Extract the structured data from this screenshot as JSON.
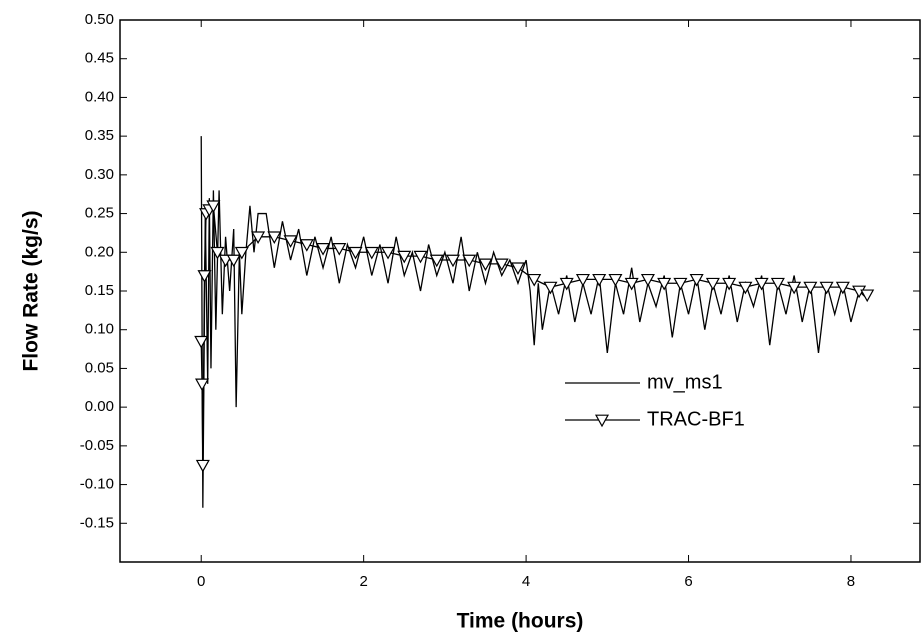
{
  "chart_data": {
    "type": "line",
    "x_label": "Time (hours)",
    "y_label": "Flow Rate (kg/s)",
    "xlim": [
      -1,
      8.85
    ],
    "xticks": [
      0,
      2,
      4,
      6,
      8
    ],
    "ylim": [
      -0.2,
      0.5
    ],
    "yticks": [
      {
        "value": -0.15,
        "label": "-0.15"
      },
      {
        "value": -0.1,
        "label": "-0.10"
      },
      {
        "value": -0.05,
        "label": "-0.05"
      },
      {
        "value": 0,
        "label": "0.00"
      },
      {
        "value": 0.05,
        "label": "0.05"
      },
      {
        "value": 0.1,
        "label": "0.10"
      },
      {
        "value": 0.15,
        "label": "0.15"
      },
      {
        "value": 0.2,
        "label": "0.20"
      },
      {
        "value": 0.25,
        "label": "0.25"
      },
      {
        "value": 0.3,
        "label": "0.30"
      },
      {
        "value": 0.35,
        "label": "0.35"
      },
      {
        "value": 0.4,
        "label": "0.40"
      },
      {
        "value": 0.45,
        "label": "0.45"
      },
      {
        "value": 0.5,
        "label": "0.50"
      }
    ],
    "legend": "center right",
    "series": [
      {
        "name": "mv_ms1",
        "color": "#000000",
        "marker": "none",
        "x": [
          0,
          0.02,
          0.05,
          0.08,
          0.1,
          0.12,
          0.15,
          0.18,
          0.22,
          0.26,
          0.3,
          0.35,
          0.4,
          0.43,
          0.47,
          0.5,
          0.55,
          0.6,
          0.65,
          0.7,
          0.8,
          0.9,
          1.0,
          1.1,
          1.2,
          1.3,
          1.4,
          1.5,
          1.6,
          1.7,
          1.8,
          1.9,
          2.0,
          2.1,
          2.2,
          2.3,
          2.4,
          2.5,
          2.6,
          2.7,
          2.8,
          2.9,
          3.0,
          3.1,
          3.2,
          3.3,
          3.4,
          3.5,
          3.6,
          3.7,
          3.8,
          3.9,
          4.0,
          4.05,
          4.1,
          4.15,
          4.2,
          4.3,
          4.4,
          4.5,
          4.6,
          4.7,
          4.8,
          4.9,
          5.0,
          5.1,
          5.2,
          5.3,
          5.4,
          5.5,
          5.6,
          5.7,
          5.8,
          5.9,
          6.0,
          6.1,
          6.2,
          6.3,
          6.4,
          6.5,
          6.6,
          6.7,
          6.8,
          6.9,
          7.0,
          7.1,
          7.2,
          7.3,
          7.4,
          7.5,
          7.6,
          7.7,
          7.8,
          7.9,
          8.0,
          8.1,
          8.2
        ],
        "values": [
          0.35,
          -0.13,
          0.25,
          0.03,
          0.27,
          0.05,
          0.28,
          0.1,
          0.28,
          0.12,
          0.22,
          0.15,
          0.23,
          0.0,
          0.2,
          0.12,
          0.2,
          0.26,
          0.2,
          0.25,
          0.25,
          0.18,
          0.24,
          0.19,
          0.23,
          0.17,
          0.22,
          0.18,
          0.22,
          0.16,
          0.21,
          0.18,
          0.22,
          0.17,
          0.21,
          0.16,
          0.22,
          0.17,
          0.2,
          0.15,
          0.21,
          0.17,
          0.2,
          0.16,
          0.22,
          0.15,
          0.2,
          0.16,
          0.2,
          0.17,
          0.19,
          0.16,
          0.19,
          0.15,
          0.08,
          0.16,
          0.1,
          0.16,
          0.12,
          0.17,
          0.11,
          0.16,
          0.12,
          0.17,
          0.07,
          0.16,
          0.12,
          0.18,
          0.11,
          0.16,
          0.13,
          0.17,
          0.09,
          0.16,
          0.12,
          0.17,
          0.1,
          0.16,
          0.12,
          0.17,
          0.11,
          0.16,
          0.13,
          0.17,
          0.08,
          0.16,
          0.12,
          0.17,
          0.11,
          0.16,
          0.07,
          0.16,
          0.12,
          0.16,
          0.11,
          0.15,
          0.14
        ]
      },
      {
        "name": "TRAC-BF1",
        "color": "#000000",
        "marker": "triangle-down",
        "x": [
          0,
          0.01,
          0.02,
          0.04,
          0.06,
          0.1,
          0.15,
          0.2,
          0.3,
          0.4,
          0.5,
          0.7,
          0.9,
          1.1,
          1.3,
          1.5,
          1.7,
          1.9,
          2.1,
          2.3,
          2.5,
          2.7,
          2.9,
          3.1,
          3.3,
          3.5,
          3.7,
          3.9,
          4.1,
          4.3,
          4.5,
          4.7,
          4.9,
          5.1,
          5.3,
          5.5,
          5.7,
          5.9,
          6.1,
          6.3,
          6.5,
          6.7,
          6.9,
          7.1,
          7.3,
          7.5,
          7.7,
          7.9,
          8.1,
          8.2
        ],
        "values": [
          0.085,
          0.03,
          -0.075,
          0.17,
          0.25,
          0.255,
          0.26,
          0.2,
          0.19,
          0.19,
          0.2,
          0.22,
          0.22,
          0.215,
          0.21,
          0.205,
          0.205,
          0.2,
          0.2,
          0.2,
          0.195,
          0.195,
          0.19,
          0.19,
          0.19,
          0.185,
          0.185,
          0.18,
          0.165,
          0.155,
          0.16,
          0.165,
          0.165,
          0.165,
          0.16,
          0.165,
          0.16,
          0.16,
          0.165,
          0.16,
          0.16,
          0.155,
          0.16,
          0.16,
          0.155,
          0.155,
          0.155,
          0.155,
          0.15,
          0.145
        ]
      }
    ]
  }
}
